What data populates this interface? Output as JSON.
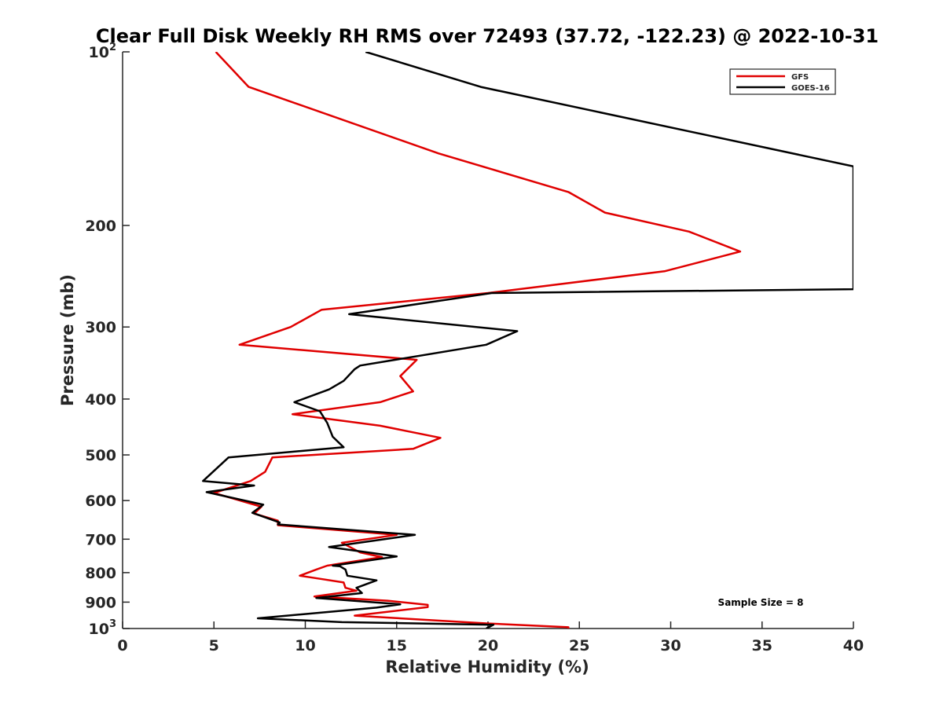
{
  "chart_data": {
    "type": "line",
    "title": "Clear Full Disk Weekly RH RMS over 72493 (37.72, -122.23) @ 2022-10-31",
    "xlabel": "Relative Humidity (%)",
    "ylabel": "Pressure (mb)",
    "xlim": [
      0,
      40
    ],
    "ylim": [
      100,
      1000
    ],
    "y_scale": "log",
    "y_reversed": true,
    "xticks": [
      0,
      5,
      10,
      15,
      20,
      25,
      30,
      35,
      40
    ],
    "xtick_labels": [
      "0",
      "5",
      "10",
      "15",
      "20",
      "25",
      "30",
      "35",
      "40"
    ],
    "yticks": [
      100,
      200,
      300,
      400,
      500,
      600,
      700,
      800,
      900,
      1000
    ],
    "ytick_labels": [
      {
        "base": "10",
        "exp": "2"
      },
      {
        "base": "200",
        "exp": ""
      },
      {
        "base": "300",
        "exp": ""
      },
      {
        "base": "400",
        "exp": ""
      },
      {
        "base": "500",
        "exp": ""
      },
      {
        "base": "600",
        "exp": ""
      },
      {
        "base": "700",
        "exp": ""
      },
      {
        "base": "800",
        "exp": ""
      },
      {
        "base": "900",
        "exp": ""
      },
      {
        "base": "10",
        "exp": "3"
      }
    ],
    "grid": false,
    "legend_position": "top-right",
    "annotation": "Sample Size = 8",
    "series": [
      {
        "name": "GFS",
        "color": "#e00000",
        "points": [
          [
            5.1,
            100
          ],
          [
            6.9,
            115
          ],
          [
            17.3,
            150
          ],
          [
            24.4,
            175
          ],
          [
            26.4,
            190
          ],
          [
            31.0,
            205
          ],
          [
            33.8,
            222
          ],
          [
            29.7,
            240
          ],
          [
            20.0,
            262
          ],
          [
            10.9,
            280
          ],
          [
            9.2,
            300
          ],
          [
            6.4,
            322
          ],
          [
            16.1,
            342
          ],
          [
            15.2,
            365
          ],
          [
            15.9,
            388
          ],
          [
            14.1,
            405
          ],
          [
            9.3,
            425
          ],
          [
            14.1,
            445
          ],
          [
            17.4,
            467
          ],
          [
            15.9,
            488
          ],
          [
            8.2,
            505
          ],
          [
            7.8,
            535
          ],
          [
            7.0,
            555
          ],
          [
            5.0,
            582
          ],
          [
            7.6,
            615
          ],
          [
            7.2,
            632
          ],
          [
            8.5,
            650
          ],
          [
            8.5,
            662
          ],
          [
            15.0,
            688
          ],
          [
            12.0,
            710
          ],
          [
            13.0,
            738
          ],
          [
            14.2,
            752
          ],
          [
            11.2,
            778
          ],
          [
            10.6,
            790
          ],
          [
            9.7,
            810
          ],
          [
            10.8,
            820
          ],
          [
            12.1,
            832
          ],
          [
            12.2,
            850
          ],
          [
            12.8,
            860
          ],
          [
            10.5,
            880
          ],
          [
            14.5,
            895
          ],
          [
            16.7,
            910
          ],
          [
            16.7,
            918
          ],
          [
            12.7,
            950
          ],
          [
            20.0,
            980
          ],
          [
            24.4,
            995
          ],
          [
            24.4,
            1000
          ]
        ]
      },
      {
        "name": "GOES-16",
        "color": "#000000",
        "points": [
          [
            13.3,
            100
          ],
          [
            19.6,
            115
          ],
          [
            40.0,
            158
          ],
          [
            40.0,
            258
          ],
          [
            20.2,
            262
          ],
          [
            12.4,
            285
          ],
          [
            21.6,
            305
          ],
          [
            19.9,
            322
          ],
          [
            13.0,
            350
          ],
          [
            12.7,
            355
          ],
          [
            12.1,
            372
          ],
          [
            11.3,
            385
          ],
          [
            9.4,
            405
          ],
          [
            10.8,
            420
          ],
          [
            11.2,
            440
          ],
          [
            11.5,
            465
          ],
          [
            12.1,
            485
          ],
          [
            5.8,
            505
          ],
          [
            4.4,
            555
          ],
          [
            7.2,
            565
          ],
          [
            4.6,
            580
          ],
          [
            7.7,
            610
          ],
          [
            7.1,
            630
          ],
          [
            8.6,
            655
          ],
          [
            8.5,
            660
          ],
          [
            16.0,
            688
          ],
          [
            11.3,
            722
          ],
          [
            15.0,
            750
          ],
          [
            11.5,
            778
          ],
          [
            11.9,
            780
          ],
          [
            12.2,
            790
          ],
          [
            12.3,
            810
          ],
          [
            13.9,
            825
          ],
          [
            12.8,
            850
          ],
          [
            13.1,
            868
          ],
          [
            10.6,
            885
          ],
          [
            15.2,
            908
          ],
          [
            13.9,
            920
          ],
          [
            7.4,
            960
          ],
          [
            12.0,
            975
          ],
          [
            20.3,
            985
          ],
          [
            19.9,
            1000
          ]
        ]
      }
    ]
  }
}
